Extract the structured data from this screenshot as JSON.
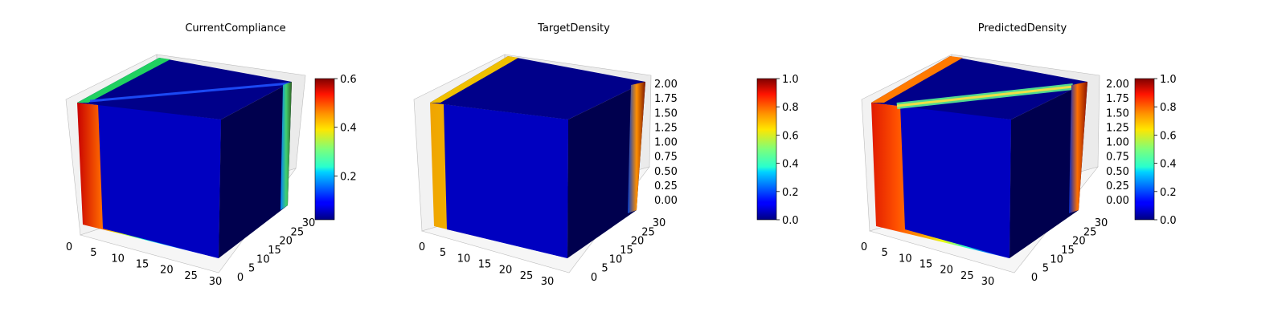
{
  "colors": {
    "colormap": "jet",
    "pane": "#f2f2f2",
    "grid": "#cccccc",
    "background": "#ffffff"
  },
  "chart_data": [
    {
      "type": "heatmap",
      "subtype": "3d-voxel",
      "title": "CurrentCompliance",
      "colormap": "jet",
      "x_ticks": [
        "0",
        "5",
        "10",
        "15",
        "20",
        "25",
        "30"
      ],
      "y_ticks": [
        "0",
        "5",
        "10",
        "15",
        "20",
        "25",
        "30"
      ],
      "z_ticks": [
        "",
        "",
        "",
        "",
        "",
        "",
        ""
      ],
      "colorbar": {
        "ticks": [
          "0.2",
          "0.4",
          "0.6"
        ],
        "min": 0.02,
        "max": 0.6
      },
      "grid": true,
      "legend": "none"
    },
    {
      "type": "heatmap",
      "subtype": "3d-voxel",
      "title": "TargetDensity",
      "colormap": "jet",
      "x_ticks": [
        "0",
        "5",
        "10",
        "15",
        "20",
        "25",
        "30"
      ],
      "y_ticks": [
        "0",
        "5",
        "10",
        "15",
        "20",
        "25",
        "30"
      ],
      "z_ticks": [
        "0.00",
        "0.25",
        "0.50",
        "0.75",
        "1.00",
        "1.25",
        "1.50",
        "1.75",
        "2.00"
      ],
      "zlim": [
        0,
        2
      ],
      "colorbar": {
        "ticks": [
          "0.0",
          "0.2",
          "0.4",
          "0.6",
          "0.8",
          "1.0"
        ],
        "min": 0,
        "max": 1
      },
      "grid": true,
      "legend": "none"
    },
    {
      "type": "heatmap",
      "subtype": "3d-voxel",
      "title": "PredictedDensity",
      "colormap": "jet",
      "x_ticks": [
        "0",
        "5",
        "10",
        "15",
        "20",
        "25",
        "30"
      ],
      "y_ticks": [
        "0",
        "5",
        "10",
        "15",
        "20",
        "25",
        "30"
      ],
      "z_ticks": [
        "0.00",
        "0.25",
        "0.50",
        "0.75",
        "1.00",
        "1.25",
        "1.50",
        "1.75",
        "2.00"
      ],
      "zlim": [
        0,
        2
      ],
      "colorbar": {
        "ticks": [
          "0.0",
          "0.2",
          "0.4",
          "0.6",
          "0.8",
          "1.0"
        ],
        "min": 0,
        "max": 1
      },
      "grid": true,
      "legend": "none"
    }
  ]
}
